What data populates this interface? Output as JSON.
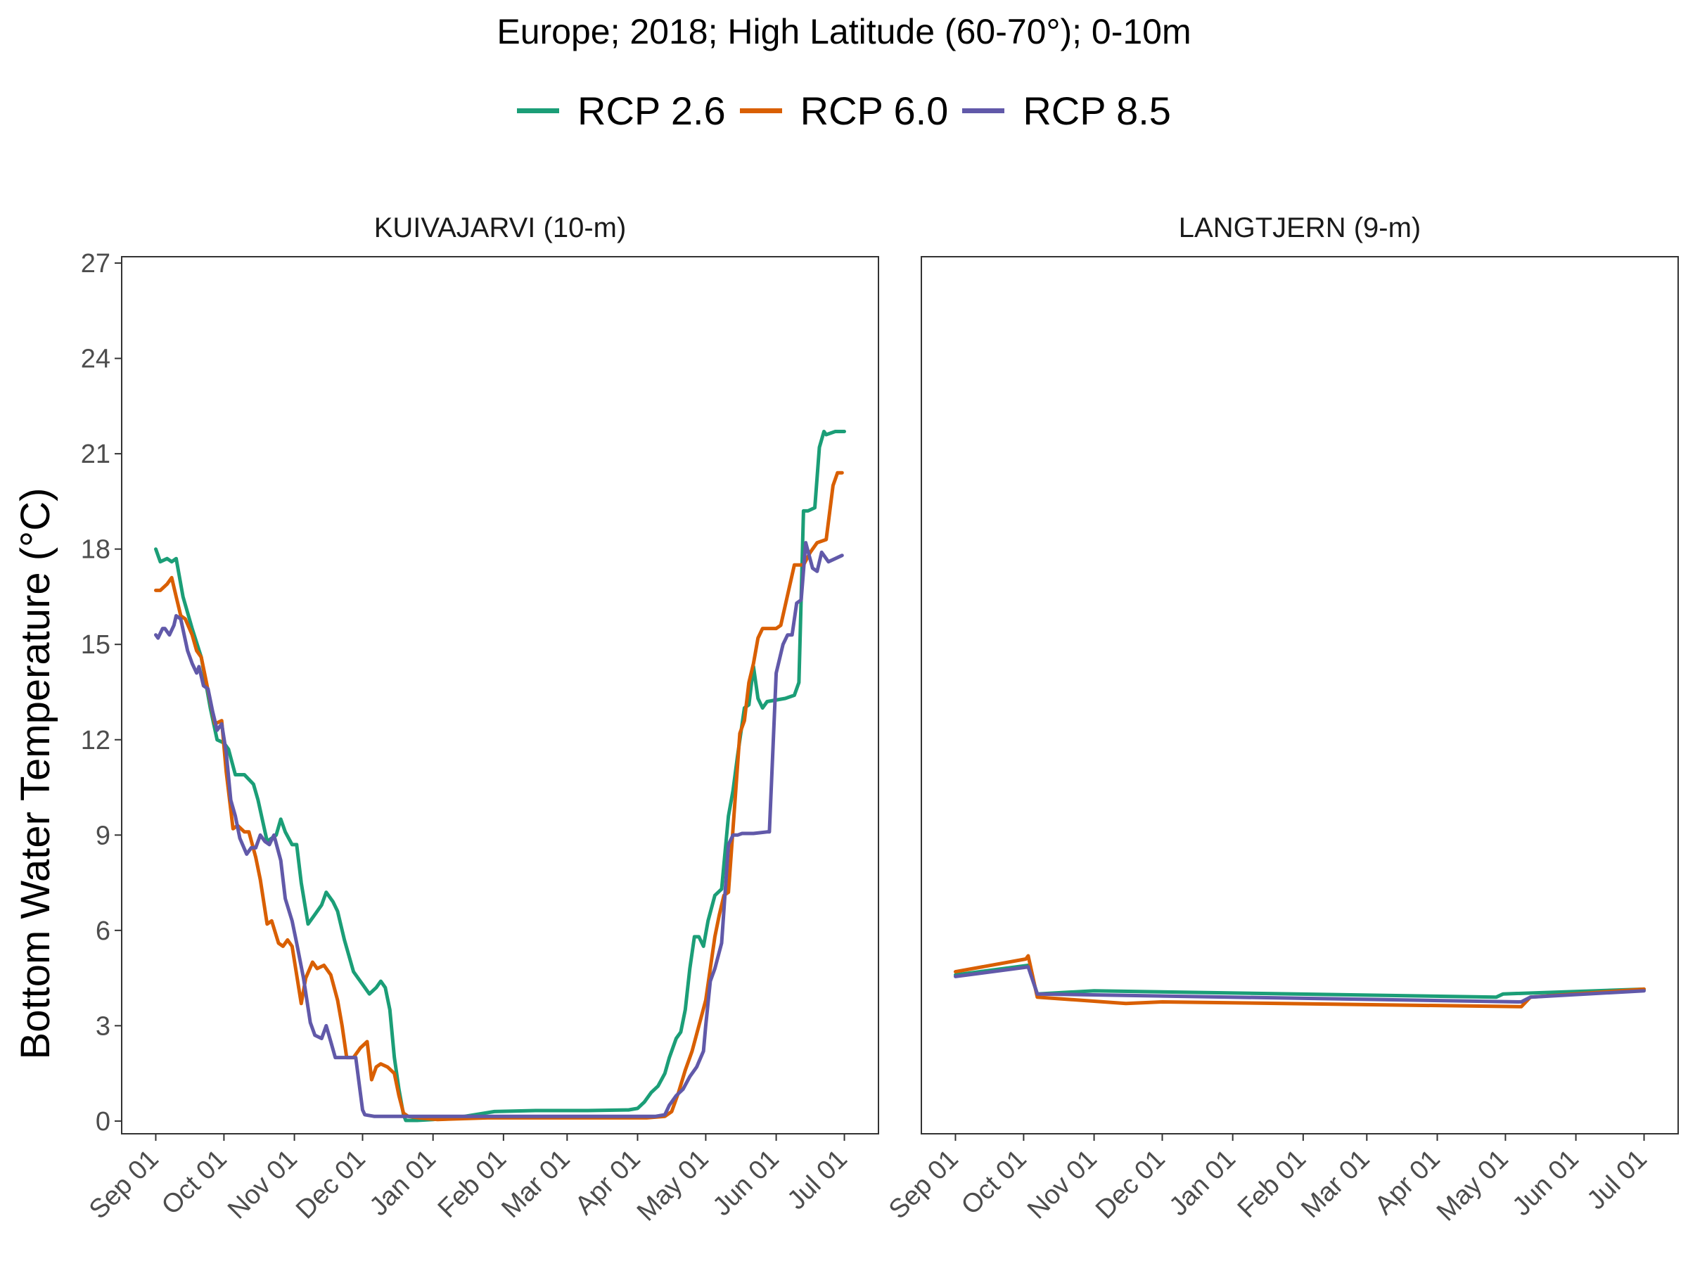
{
  "title": "Europe;  2018;  High Latitude (60-70°);  0-10m",
  "colors": {
    "rcp26": "#1b9e77",
    "rcp60": "#d95f02",
    "rcp85": "#6159a9"
  },
  "legend": [
    {
      "label": "RCP 2.6",
      "color": "#1b9e77"
    },
    {
      "label": "RCP 6.0",
      "color": "#d95f02"
    },
    {
      "label": "RCP 8.5",
      "color": "#6159a9"
    }
  ],
  "y_axis_title": "Bottom Water Temperature (°C)",
  "chart_data": [
    {
      "type": "line",
      "title": "KUIVAJARVI (10-m)",
      "ylabel": "Bottom Water Temperature (°C)",
      "ylim": [
        0,
        27
      ],
      "xlim": [
        "2017-09-01",
        "2018-07-01"
      ],
      "grid": false,
      "y_ticks": [
        "0",
        "3",
        "6",
        "9",
        "12",
        "15",
        "18",
        "21",
        "24",
        "27"
      ],
      "x_ticks": [
        "Sep 01",
        "Oct 01",
        "Nov 01",
        "Dec 01",
        "Jan 01",
        "Feb 01",
        "Mar 01",
        "Apr 01",
        "May 01",
        "Jun 01",
        "Jul 01"
      ],
      "series": [
        {
          "name": "RCP 2.6",
          "color": "#1b9e77",
          "x": [
            "2017-09-01",
            "2017-09-03",
            "2017-09-06",
            "2017-09-08",
            "2017-09-10",
            "2017-09-13",
            "2017-09-17",
            "2017-09-21",
            "2017-09-25",
            "2017-09-28",
            "2017-10-01",
            "2017-10-03",
            "2017-10-06",
            "2017-10-10",
            "2017-10-14",
            "2017-10-16",
            "2017-10-20",
            "2017-10-24",
            "2017-10-26",
            "2017-10-28",
            "2017-10-31",
            "2017-11-02",
            "2017-11-04",
            "2017-11-07",
            "2017-11-10",
            "2017-11-13",
            "2017-11-15",
            "2017-11-18",
            "2017-11-20",
            "2017-11-23",
            "2017-11-27",
            "2017-12-01",
            "2017-12-04",
            "2017-12-07",
            "2017-12-09",
            "2017-12-11",
            "2017-12-13",
            "2017-12-15",
            "2017-12-17",
            "2017-12-19",
            "2017-12-20",
            "2017-12-25",
            "2018-01-01",
            "2018-01-15",
            "2018-01-28",
            "2018-02-15",
            "2018-03-10",
            "2018-03-28",
            "2018-04-01",
            "2018-04-04",
            "2018-04-07",
            "2018-04-10",
            "2018-04-13",
            "2018-04-15",
            "2018-04-18",
            "2018-04-20",
            "2018-04-22",
            "2018-04-24",
            "2018-04-26",
            "2018-04-28",
            "2018-04-30",
            "2018-05-02",
            "2018-05-05",
            "2018-05-08",
            "2018-05-11",
            "2018-05-13",
            "2018-05-15",
            "2018-05-18",
            "2018-05-20",
            "2018-05-22",
            "2018-05-24",
            "2018-05-26",
            "2018-05-28",
            "2018-06-05",
            "2018-06-09",
            "2018-06-11",
            "2018-06-13",
            "2018-06-15",
            "2018-06-18",
            "2018-06-20",
            "2018-06-22",
            "2018-06-23",
            "2018-06-27",
            "2018-06-29",
            "2018-07-01"
          ],
          "y": [
            18.0,
            17.6,
            17.7,
            17.6,
            17.7,
            16.5,
            15.5,
            14.6,
            13.0,
            12.0,
            11.9,
            11.7,
            10.9,
            10.9,
            10.6,
            10.1,
            8.8,
            9.0,
            9.5,
            9.1,
            8.7,
            8.7,
            7.5,
            6.2,
            6.5,
            6.8,
            7.2,
            6.9,
            6.6,
            5.7,
            4.7,
            4.3,
            4.0,
            4.2,
            4.4,
            4.2,
            3.5,
            2.0,
            1.0,
            0.2,
            0.02,
            0.02,
            0.05,
            0.15,
            0.3,
            0.33,
            0.33,
            0.35,
            0.4,
            0.6,
            0.9,
            1.1,
            1.5,
            2.0,
            2.6,
            2.8,
            3.5,
            4.8,
            5.8,
            5.8,
            5.5,
            6.3,
            7.1,
            7.3,
            9.6,
            10.4,
            11.5,
            13.0,
            13.1,
            14.3,
            13.3,
            13.0,
            13.2,
            13.3,
            13.4,
            13.8,
            19.2,
            19.2,
            19.3,
            21.2,
            21.7,
            21.6,
            21.7,
            21.7,
            21.7
          ]
        },
        {
          "name": "RCP 6.0",
          "color": "#d95f02",
          "x": [
            "2017-09-01",
            "2017-09-03",
            "2017-09-06",
            "2017-09-08",
            "2017-09-10",
            "2017-09-12",
            "2017-09-14",
            "2017-09-17",
            "2017-09-19",
            "2017-09-21",
            "2017-09-23",
            "2017-09-25",
            "2017-09-27",
            "2017-09-30",
            "2017-10-02",
            "2017-10-04",
            "2017-10-05",
            "2017-10-07",
            "2017-10-10",
            "2017-10-12",
            "2017-10-15",
            "2017-10-17",
            "2017-10-20",
            "2017-10-22",
            "2017-10-25",
            "2017-10-27",
            "2017-10-29",
            "2017-10-31",
            "2017-11-02",
            "2017-11-04",
            "2017-11-06",
            "2017-11-09",
            "2017-11-11",
            "2017-11-14",
            "2017-11-17",
            "2017-11-20",
            "2017-11-22",
            "2017-11-24",
            "2017-11-27",
            "2017-11-30",
            "2017-12-03",
            "2017-12-05",
            "2017-12-07",
            "2017-12-09",
            "2017-12-12",
            "2017-12-15",
            "2017-12-17",
            "2017-12-19",
            "2017-12-21",
            "2017-12-26",
            "2018-01-03",
            "2018-01-25",
            "2018-02-20",
            "2018-03-20",
            "2018-04-05",
            "2018-04-13",
            "2018-04-16",
            "2018-04-19",
            "2018-04-22",
            "2018-04-25",
            "2018-04-28",
            "2018-05-01",
            "2018-05-03",
            "2018-05-05",
            "2018-05-07",
            "2018-05-09",
            "2018-05-11",
            "2018-05-13",
            "2018-05-16",
            "2018-05-18",
            "2018-05-20",
            "2018-05-22",
            "2018-05-24",
            "2018-05-26",
            "2018-05-28",
            "2018-06-01",
            "2018-06-03",
            "2018-06-09",
            "2018-06-13",
            "2018-06-16",
            "2018-06-19",
            "2018-06-23",
            "2018-06-26",
            "2018-06-28",
            "2018-06-29",
            "2018-06-30"
          ],
          "y": [
            16.7,
            16.7,
            16.9,
            17.1,
            16.5,
            15.9,
            15.8,
            15.3,
            14.8,
            14.6,
            13.9,
            13.2,
            12.5,
            12.6,
            11.0,
            9.8,
            9.2,
            9.3,
            9.1,
            9.1,
            8.3,
            7.6,
            6.2,
            6.3,
            5.6,
            5.5,
            5.7,
            5.5,
            4.6,
            3.7,
            4.5,
            5.0,
            4.8,
            4.9,
            4.6,
            3.8,
            3.0,
            2.0,
            2.0,
            2.3,
            2.5,
            1.3,
            1.7,
            1.8,
            1.7,
            1.5,
            0.8,
            0.25,
            0.15,
            0.1,
            0.05,
            0.1,
            0.1,
            0.1,
            0.1,
            0.15,
            0.3,
            0.9,
            1.6,
            2.2,
            3.0,
            3.8,
            4.8,
            5.8,
            6.5,
            7.1,
            7.2,
            9.2,
            12.2,
            12.6,
            13.8,
            14.4,
            15.2,
            15.5,
            15.5,
            15.5,
            15.6,
            17.5,
            17.5,
            17.9,
            18.2,
            18.3,
            20.0,
            20.4,
            20.4,
            20.4
          ]
        },
        {
          "name": "RCP 8.5",
          "color": "#6159a9",
          "x": [
            "2017-09-01",
            "2017-09-02",
            "2017-09-04",
            "2017-09-05",
            "2017-09-07",
            "2017-09-09",
            "2017-09-10",
            "2017-09-12",
            "2017-09-15",
            "2017-09-17",
            "2017-09-19",
            "2017-09-20",
            "2017-09-22",
            "2017-09-24",
            "2017-09-26",
            "2017-09-28",
            "2017-09-30",
            "2017-10-02",
            "2017-10-04",
            "2017-10-06",
            "2017-10-08",
            "2017-10-11",
            "2017-10-13",
            "2017-10-15",
            "2017-10-17",
            "2017-10-19",
            "2017-10-21",
            "2017-10-23",
            "2017-10-26",
            "2017-10-28",
            "2017-10-31",
            "2017-11-02",
            "2017-11-05",
            "2017-11-08",
            "2017-11-10",
            "2017-11-13",
            "2017-11-15",
            "2017-11-17",
            "2017-11-19",
            "2017-11-21",
            "2017-11-23",
            "2017-11-28",
            "2017-12-01",
            "2017-12-02",
            "2017-12-06",
            "2017-12-15",
            "2017-12-28",
            "2018-01-15",
            "2018-02-15",
            "2018-03-15",
            "2018-04-05",
            "2018-04-09",
            "2018-04-13",
            "2018-04-15",
            "2018-04-18",
            "2018-04-21",
            "2018-04-24",
            "2018-04-27",
            "2018-04-30",
            "2018-05-01",
            "2018-05-03",
            "2018-05-05",
            "2018-05-08",
            "2018-05-11",
            "2018-05-13",
            "2018-05-15",
            "2018-05-17",
            "2018-05-22",
            "2018-05-28",
            "2018-05-29",
            "2018-06-01",
            "2018-06-04",
            "2018-06-06",
            "2018-06-08",
            "2018-06-10",
            "2018-06-12",
            "2018-06-14",
            "2018-06-17",
            "2018-06-19",
            "2018-06-21",
            "2018-06-24",
            "2018-06-27",
            "2018-06-30"
          ],
          "y": [
            15.3,
            15.2,
            15.5,
            15.5,
            15.3,
            15.6,
            15.9,
            15.8,
            14.8,
            14.4,
            14.1,
            14.3,
            13.7,
            13.6,
            12.9,
            12.3,
            12.5,
            11.6,
            10.1,
            9.6,
            8.9,
            8.4,
            8.6,
            8.6,
            9.0,
            8.8,
            8.7,
            9.0,
            8.2,
            7.0,
            6.3,
            5.6,
            4.5,
            3.1,
            2.7,
            2.6,
            3.0,
            2.5,
            2.0,
            2.0,
            2.0,
            2.0,
            0.35,
            0.2,
            0.15,
            0.15,
            0.15,
            0.15,
            0.15,
            0.15,
            0.15,
            0.15,
            0.2,
            0.5,
            0.8,
            1.0,
            1.4,
            1.7,
            2.2,
            3.0,
            4.4,
            4.8,
            5.6,
            8.7,
            9.0,
            9.0,
            9.05,
            9.05,
            9.1,
            9.1,
            14.1,
            15.0,
            15.3,
            15.3,
            16.3,
            16.4,
            18.2,
            17.4,
            17.3,
            17.9,
            17.6,
            17.7,
            17.8
          ]
        }
      ]
    },
    {
      "type": "line",
      "title": "LANGTJERN (9-m)",
      "ylim": [
        0,
        27
      ],
      "xlim": [
        "2017-09-01",
        "2018-07-01"
      ],
      "grid": false,
      "x_ticks": [
        "Sep 01",
        "Oct 01",
        "Nov 01",
        "Dec 01",
        "Jan 01",
        "Feb 01",
        "Mar 01",
        "Apr 01",
        "May 01",
        "Jun 01",
        "Jul 01"
      ],
      "series": [
        {
          "name": "RCP 2.6",
          "color": "#1b9e77",
          "x": [
            "2017-09-01",
            "2017-10-03",
            "2017-10-07",
            "2017-11-01",
            "2018-04-27",
            "2018-04-30",
            "2018-07-01"
          ],
          "y": [
            4.6,
            4.9,
            4.0,
            4.1,
            3.9,
            4.0,
            4.15
          ]
        },
        {
          "name": "RCP 6.0",
          "color": "#d95f02",
          "x": [
            "2017-09-01",
            "2017-10-02",
            "2017-10-03",
            "2017-10-07",
            "2017-11-15",
            "2017-12-01",
            "2018-05-08",
            "2018-05-12",
            "2018-07-01"
          ],
          "y": [
            4.7,
            5.1,
            5.2,
            3.9,
            3.7,
            3.75,
            3.6,
            3.9,
            4.15
          ]
        },
        {
          "name": "RCP 8.5",
          "color": "#6159a9",
          "x": [
            "2017-09-01",
            "2017-10-03",
            "2017-10-07",
            "2018-05-08",
            "2018-05-12",
            "2018-07-01"
          ],
          "y": [
            4.55,
            4.85,
            4.0,
            3.75,
            3.9,
            4.1
          ]
        }
      ]
    }
  ]
}
